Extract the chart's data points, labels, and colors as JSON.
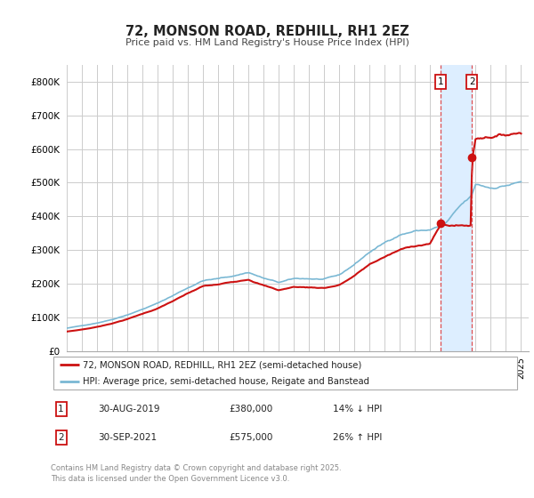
{
  "title": "72, MONSON ROAD, REDHILL, RH1 2EZ",
  "subtitle": "Price paid vs. HM Land Registry's House Price Index (HPI)",
  "legend_line1": "72, MONSON ROAD, REDHILL, RH1 2EZ (semi-detached house)",
  "legend_line2": "HPI: Average price, semi-detached house, Reigate and Banstead",
  "footnote": "Contains HM Land Registry data © Crown copyright and database right 2025.\nThis data is licensed under the Open Government Licence v3.0.",
  "annotation1": {
    "num": "1",
    "date": "30-AUG-2019",
    "price": "£380,000",
    "change": "14% ↓ HPI"
  },
  "annotation2": {
    "num": "2",
    "date": "30-SEP-2021",
    "price": "£575,000",
    "change": "26% ↑ HPI"
  },
  "hpi_color": "#7ab8d4",
  "price_color": "#cc1111",
  "marker_color": "#cc1111",
  "vline_color": "#dd3333",
  "shade_color": "#ddeeff",
  "background_color": "#ffffff",
  "grid_color": "#cccccc",
  "box1_color": "#cc1111",
  "box2_color": "#cc1111",
  "ylim": [
    0,
    850000
  ],
  "yticks": [
    0,
    100000,
    200000,
    300000,
    400000,
    500000,
    600000,
    700000,
    800000
  ],
  "ytick_labels": [
    "£0",
    "£100K",
    "£200K",
    "£300K",
    "£400K",
    "£500K",
    "£600K",
    "£700K",
    "£800K"
  ],
  "xmin": 1995.0,
  "xmax": 2025.5,
  "vline1_x": 2019.67,
  "vline2_x": 2021.75,
  "marker1_x": 2019.67,
  "marker1_y": 380000,
  "marker2_x": 2021.75,
  "marker2_y": 575000
}
